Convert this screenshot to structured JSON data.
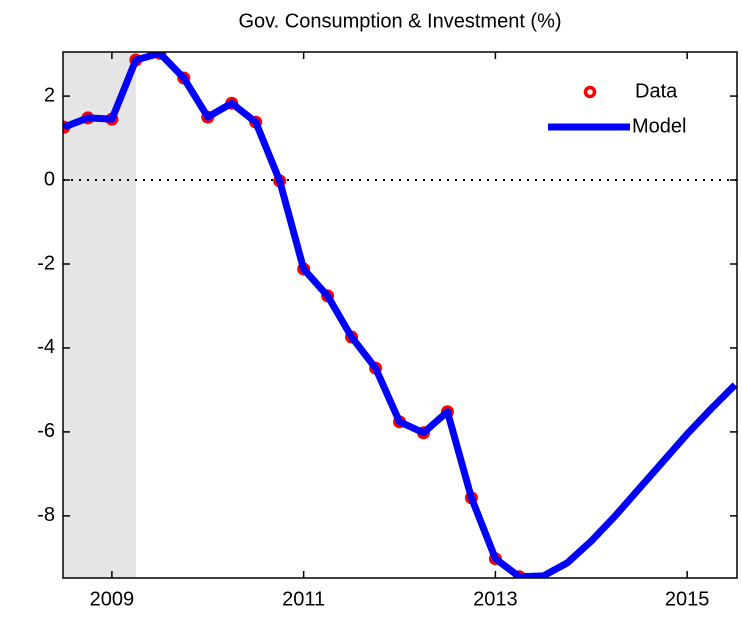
{
  "chart_data": {
    "type": "line",
    "title": "Gov. Consumption & Investment (%)",
    "x": [
      2008.5,
      2008.75,
      2009.0,
      2009.25,
      2009.5,
      2009.75,
      2010.0,
      2010.25,
      2010.5,
      2010.75,
      2011.0,
      2011.25,
      2011.5,
      2011.75,
      2012.0,
      2012.25,
      2012.5,
      2012.75,
      2013.0,
      2013.25,
      2013.5,
      2013.75,
      2014.0,
      2014.25,
      2014.5,
      2014.75,
      2015.0,
      2015.25,
      2015.5
    ],
    "series": [
      {
        "name": "Data",
        "color": "#ff0000",
        "style": "markers",
        "values": [
          1.26,
          1.48,
          1.45,
          2.86,
          3.02,
          2.43,
          1.5,
          1.83,
          1.38,
          -0.02,
          -2.12,
          -2.76,
          -3.74,
          -4.48,
          -5.76,
          -6.02,
          -5.52,
          -7.57,
          -9.02,
          -9.45,
          null,
          null,
          null,
          null,
          null,
          null,
          null,
          null,
          null
        ]
      },
      {
        "name": "Model",
        "color": "#0000ff",
        "style": "line",
        "values": [
          1.26,
          1.48,
          1.45,
          2.86,
          3.02,
          2.43,
          1.5,
          1.83,
          1.38,
          -0.02,
          -2.12,
          -2.76,
          -3.74,
          -4.48,
          -5.76,
          -6.02,
          -5.52,
          -7.57,
          -9.02,
          -9.45,
          -9.43,
          -9.12,
          -8.6,
          -8.0,
          -7.35,
          -6.7,
          -6.05,
          -5.45,
          -4.88
        ]
      }
    ],
    "xlim": [
      2008.49,
      2015.52
    ],
    "xticks": [
      2009,
      2011,
      2013,
      2015
    ],
    "ylim": [
      -9.48,
      3.05
    ],
    "yticks": [
      -8,
      -6,
      -4,
      -2,
      0,
      2
    ],
    "shade": [
      2008.49,
      2009.25
    ],
    "shade_color": "#e5e5e5",
    "zero_line": true,
    "legend": "upper right"
  }
}
